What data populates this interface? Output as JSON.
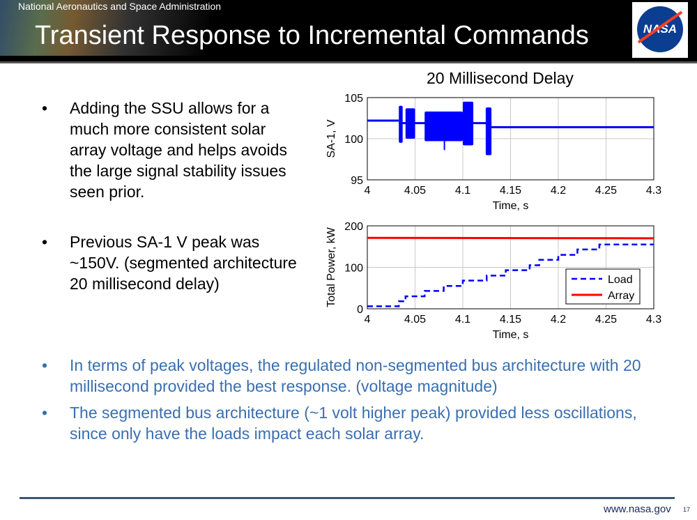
{
  "header": {
    "agency": "National Aeronautics and Space Administration",
    "title": "Transient Response to Incremental Commands",
    "logo_text": "NASA"
  },
  "bullets_left": [
    "Adding the SSU allows for a much more consistent solar array voltage and helps avoids the large signal stability issues seen prior.",
    "Previous SA-1 V peak was ~150V. (segmented architecture 20 millisecond delay)"
  ],
  "bullets_bottom": [
    "In terms of peak voltages, the regulated non-segmented bus architecture with 20 millisecond provided the best response. (voltage magnitude)",
    "The segmented bus architecture (~1 volt higher peak) provided less oscillations, since only have the loads impact each solar array."
  ],
  "footer": {
    "url": "www.nasa.gov",
    "page": "17"
  },
  "chart_title": "20 Millisecond Delay",
  "chart_data": [
    {
      "type": "line",
      "title": "20 Millisecond Delay",
      "xlabel": "Time, s",
      "ylabel": "SA-1, V",
      "xlim": [
        4,
        4.3
      ],
      "ylim": [
        95,
        105
      ],
      "xticks": [
        "4",
        "4.05",
        "4.1",
        "4.15",
        "4.2",
        "4.25",
        "4.3"
      ],
      "yticks": [
        "95",
        "100",
        "105"
      ],
      "grid": true,
      "color": "#0000ff",
      "baseline": [
        {
          "t0": 4.0,
          "t1": 4.033,
          "v": 102.2
        },
        {
          "t0": 4.033,
          "t1": 4.13,
          "v": 101.9
        },
        {
          "t0": 4.13,
          "t1": 4.3,
          "v": 101.4
        }
      ],
      "bursts": [
        {
          "t0": 4.033,
          "t1": 4.037,
          "min": 99.5,
          "max": 104.0
        },
        {
          "t0": 4.04,
          "t1": 4.05,
          "min": 100.0,
          "max": 103.7
        },
        {
          "t0": 4.06,
          "t1": 4.1,
          "min": 99.7,
          "max": 103.3
        },
        {
          "t0": 4.08,
          "t1": 4.081,
          "min": 98.6,
          "max": 103.2
        },
        {
          "t0": 4.1,
          "t1": 4.111,
          "min": 99.2,
          "max": 104.5
        },
        {
          "t0": 4.124,
          "t1": 4.13,
          "min": 98.0,
          "max": 103.8
        }
      ]
    },
    {
      "type": "line",
      "xlabel": "Time, s",
      "ylabel": "Total Power, kW",
      "xlim": [
        4,
        4.3
      ],
      "ylim": [
        0,
        200
      ],
      "xticks": [
        "4",
        "4.05",
        "4.1",
        "4.15",
        "4.2",
        "4.25",
        "4.3"
      ],
      "yticks": [
        "0",
        "100",
        "200"
      ],
      "grid": true,
      "legend": "bottom-right",
      "series": [
        {
          "name": "Load",
          "style": "dashed",
          "color": "#0000ff",
          "x": [
            4.0,
            4.033,
            4.033,
            4.04,
            4.04,
            4.06,
            4.06,
            4.08,
            4.08,
            4.1,
            4.1,
            4.125,
            4.125,
            4.145,
            4.145,
            4.17,
            4.17,
            4.18,
            4.18,
            4.2,
            4.2,
            4.22,
            4.22,
            4.243,
            4.243,
            4.3
          ],
          "y": [
            6,
            6,
            18,
            18,
            30,
            30,
            43,
            43,
            55,
            55,
            68,
            68,
            80,
            80,
            93,
            93,
            105,
            105,
            118,
            118,
            130,
            130,
            143,
            143,
            155,
            155
          ]
        },
        {
          "name": "Array",
          "style": "solid",
          "color": "#ff0000",
          "x": [
            4.0,
            4.3
          ],
          "y": [
            171,
            170
          ]
        }
      ]
    }
  ]
}
